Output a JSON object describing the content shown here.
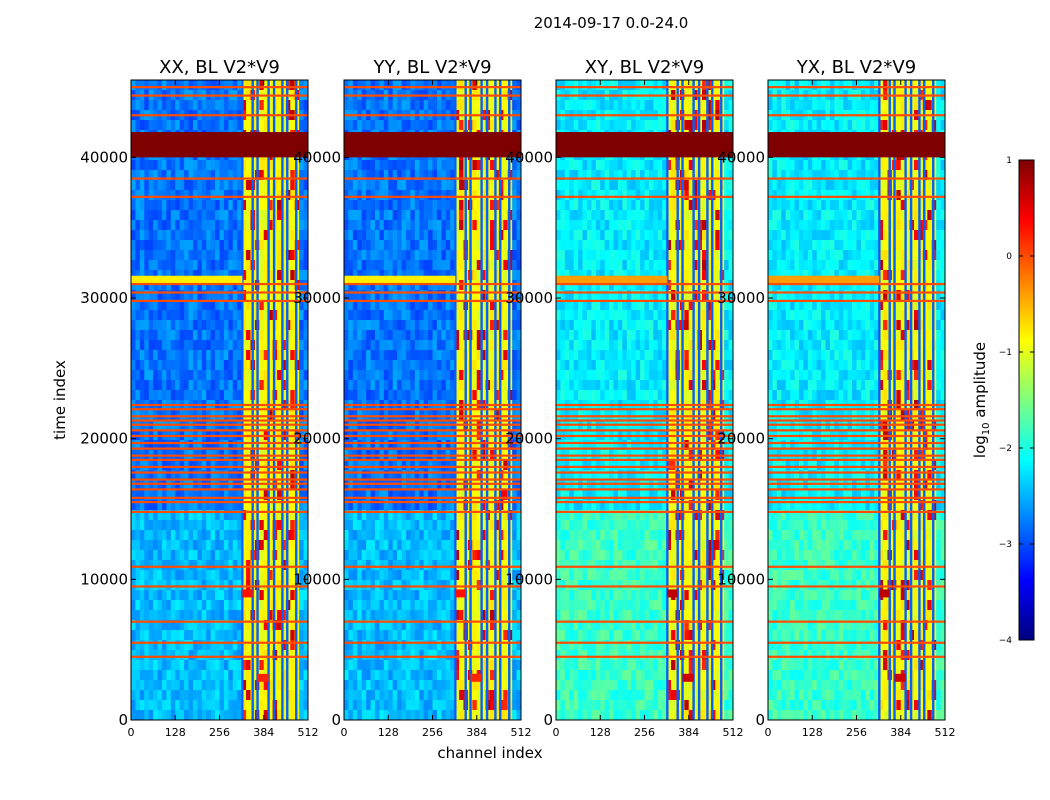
{
  "figure": {
    "suptitle": "2014-09-17 0.0-24.0",
    "xlabel": "channel index",
    "ylabel": "time index"
  },
  "colorbar": {
    "label_prefix": "log",
    "label_sub": "10",
    "label_suffix": " amplitude",
    "range": [
      -4,
      1
    ],
    "ticks": [
      1,
      0,
      -1,
      -2,
      -3,
      -4
    ],
    "tick_labels": [
      "1",
      "0",
      "−1",
      "−2",
      "−3",
      "−4"
    ],
    "colormap": "jet",
    "colors": [
      "#00007f",
      "#0000ff",
      "#007fff",
      "#00ffff",
      "#7fff7f",
      "#ffff00",
      "#ff7f00",
      "#ff0000",
      "#7f0000"
    ]
  },
  "chart_data": {
    "type": "heatmap",
    "panels": [
      {
        "title": "XX, BL V2*V9",
        "pol": "XX"
      },
      {
        "title": "YY, BL V2*V9",
        "pol": "YY"
      },
      {
        "title": "XY, BL V2*V9",
        "pol": "XY"
      },
      {
        "title": "YX, BL V2*V9",
        "pol": "YX"
      }
    ],
    "x_range": [
      0,
      512
    ],
    "y_range": [
      0,
      45500
    ],
    "x_ticks": [
      0,
      128,
      256,
      384,
      512
    ],
    "x_tick_labels": [
      "0",
      "128",
      "256",
      "384",
      "512"
    ],
    "y_ticks": [
      0,
      10000,
      20000,
      30000,
      40000
    ],
    "y_tick_labels": [
      "0",
      "10000",
      "20000",
      "30000",
      "40000"
    ],
    "background_level": -2.8,
    "background_level_cross": -2.2,
    "rfi_channel_band": [
      322,
      480
    ],
    "rfi_channel_lines": [
      322,
      352,
      366,
      398,
      414,
      438,
      452,
      478
    ],
    "saturated_time_band": [
      40000,
      41800
    ],
    "broadband_rows": [
      45000,
      44400,
      43000,
      38500,
      37200,
      31000,
      30400,
      29800,
      22400,
      22100,
      21600,
      21300,
      21000,
      20600,
      20200,
      19700,
      19300,
      18800,
      18500,
      18000,
      17600,
      17100,
      16800,
      16400,
      15800,
      15500,
      14800,
      10900,
      9500,
      7000,
      5500,
      4500
    ],
    "burst_events": [
      {
        "t": 31300,
        "c_from": 0,
        "c_to": 322,
        "level": -0.8
      },
      {
        "t": 9000,
        "c_from": 322,
        "c_to": 352,
        "level": 0.3
      },
      {
        "t": 3000,
        "c_from": 366,
        "c_to": 398,
        "level": 0.2
      }
    ]
  }
}
